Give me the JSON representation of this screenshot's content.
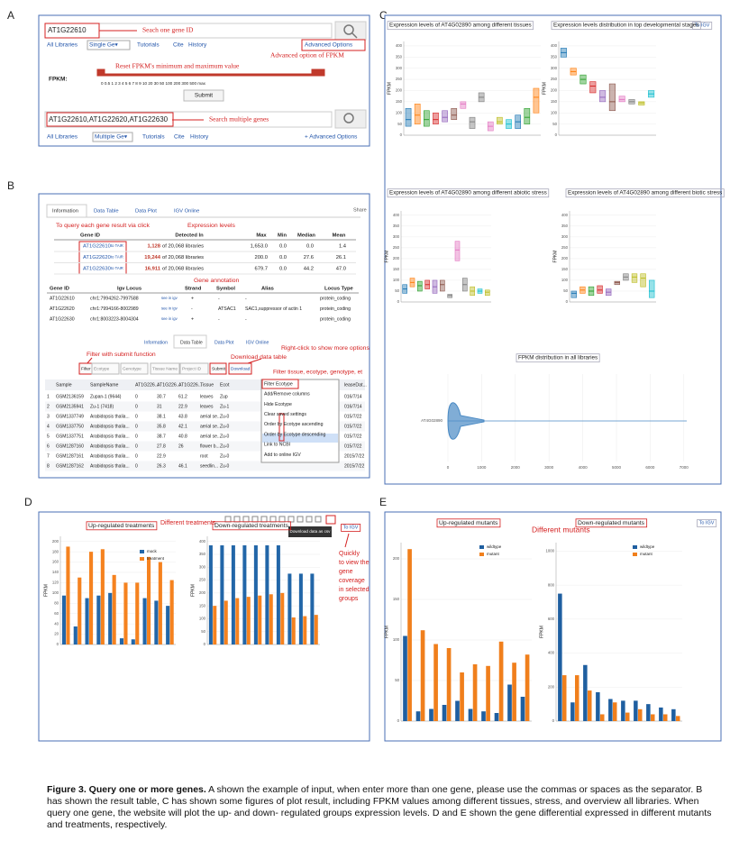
{
  "figure": {
    "panel_labels": [
      "A",
      "B",
      "C",
      "D",
      "E"
    ],
    "caption": {
      "lead": "Figure  3. Query one or more genes.",
      "text": " A shown the example of input, when enter more than one gene, please use the commas or spaces as the separator. B has shown the result table, C has shown some figures of plot result, including FPKM values among different tissues, stress, and overview all libraries. When query one gene, the website will plot the up- and down- regulated groups expression levels. D and E shown the gene differential expressed in different mutants and treatments, respectively."
    }
  },
  "panel_a": {
    "single_input": "AT1G22610",
    "single_note": "Seach one gene ID",
    "nav_single": [
      "All Libraries",
      "Single Ge▾",
      "Tutorials",
      "Cite",
      "History",
      "Advanced Options"
    ],
    "advanced_note": "Advanced option of FPKM",
    "fpkm_label": "FPKM:",
    "reset_note": "Reset FPKM's minimum and maximum value",
    "slider_scale": "0  0.5  1   2   3   4   5   6   7   8   9   10   20   30   50   100   200   300   500   max",
    "submit": "Submit",
    "multi_input": "AT1G22610,AT1G22620,AT1G22630",
    "multi_note": "Search multiple genes",
    "nav_multi": [
      "All Libraries",
      "Multiple Ge▾",
      "Tutorials",
      "Cite",
      "History",
      "+ Advanced Options"
    ]
  },
  "panel_b": {
    "tabs": [
      "Information",
      "Data Table",
      "Data Plot",
      "IGV Online"
    ],
    "share": "Share",
    "click_note": "To query each gene result via click",
    "expression_note": "Expression levels",
    "gene_table": {
      "header": [
        "Gene ID",
        "Detected In",
        "Max",
        "Min",
        "Median",
        "Mean"
      ],
      "rows": [
        [
          "AT1G22610",
          "to TAIR",
          "1,128",
          "of 20,068 libraries",
          "1,653.0",
          "0.0",
          "0.0",
          "1.4"
        ],
        [
          "AT1G22620",
          "to TAIR",
          "19,244",
          "of 20,068 libraries",
          "200.0",
          "0.0",
          "27.6",
          "26.1"
        ],
        [
          "AT1G22630",
          "to TAIR",
          "16,911",
          "of 20,068 libraries",
          "679.7",
          "0.0",
          "44.2",
          "47.0"
        ]
      ]
    },
    "annotation_note": "Gene annotation",
    "annotation_table": {
      "header": [
        "Gene ID",
        "Igv Locus",
        "Strand",
        "Symbol",
        "Alias",
        "Locus Type"
      ],
      "rows": [
        [
          "AT1G22610",
          "chr1:7994262-7997588",
          "see in igv",
          "+",
          "-",
          "-",
          "protein_coding"
        ],
        [
          "AT1G22620",
          "chr1:7994166-8002989",
          "see in igv",
          "-",
          "ATSAC1",
          "SAC1,suppressor of actin 1",
          "protein_coding"
        ],
        [
          "AT1G22630",
          "chr1:8003223-8004304",
          "see in igv",
          "+",
          "-",
          "-",
          "protein_coding"
        ]
      ]
    },
    "tabs_lower": [
      "Information",
      "Data Table",
      "Data Plot",
      "IGV Online"
    ],
    "filter_note": "Filter with submit function",
    "download_note": "Download data table",
    "rightclick_note": "Right-click to show more options",
    "filter_menu_note": "Filter tissue, ecotype, genotype, et",
    "filter_row": [
      "Filter",
      "Ecotype",
      "Genotype",
      "Tissue Name",
      "Project ID",
      "Submit",
      "Download"
    ],
    "sample_table": {
      "header": [
        "Sample",
        "SampleName",
        "AT1G226...",
        "AT1G226...",
        "AT1G226...",
        "Tissue",
        "Ecot",
        "leaseDat..."
      ],
      "rows": [
        [
          "1",
          "GSM2136159",
          "Zupan-1 (9644)",
          "0",
          "30.7",
          "61.2",
          "leaves",
          "Zup",
          "016/7/14"
        ],
        [
          "2",
          "GSM2135941",
          "Zu-1 (7418)",
          "0",
          "31",
          "22.9",
          "leaves",
          "Zu-1",
          "016/7/14"
        ],
        [
          "3",
          "GSM1337749",
          "Arabidopsis thalia...",
          "0",
          "38.1",
          "43.8",
          "aerial se...",
          "Zu-0",
          "015/7/22"
        ],
        [
          "4",
          "GSM1337750",
          "Arabidopsis thalia...",
          "0",
          "35.8",
          "42.1",
          "aerial se...",
          "Zu-0",
          "015/7/22"
        ],
        [
          "5",
          "GSM1337751",
          "Arabidopsis thalia...",
          "0",
          "38.7",
          "40.8",
          "aerial se...",
          "Zu-0",
          "015/7/22"
        ],
        [
          "6",
          "GSM1287160",
          "Arabidopsis thalia...",
          "0",
          "27.8",
          "26",
          "flower b...",
          "Zu-0",
          "015/7/22"
        ],
        [
          "7",
          "GSM1287161",
          "Arabidopsis thalia...",
          "0",
          "22.9",
          null,
          "root",
          "Zu-0",
          "2015/7/22"
        ],
        [
          "8",
          "GSM1287162",
          "Arabidopsis thalia...",
          "0",
          "26.3",
          "46.1",
          "seedlin...",
          "Zu-0",
          "2015/7/22"
        ]
      ]
    },
    "context_menu": [
      "Filter Ecotype",
      "Add/Remove columns",
      "Hide Ecotype",
      "Clear saved settings",
      "Order by Ecotype ascending",
      "Order by Ecotype descending",
      "Link to NCBI",
      "Add to online IGV"
    ]
  },
  "panel_c": {
    "to_igv": "To IGV"
  },
  "panel_d": {
    "different_note": "Different treatments",
    "download_tip": "Download data as csv",
    "to_igv": "To IGV",
    "quick_note": [
      "Quickly",
      "to view the",
      "gene",
      "coverage",
      "in selected",
      "groups"
    ]
  },
  "panel_e": {
    "different_note": "Different mutants",
    "to_igv": "To IGV"
  },
  "chart_data": [
    {
      "type": "box",
      "title": "Expression levels of AT4G02890 among different tissues",
      "y_label": "FPKM",
      "ylim": [
        0,
        420
      ],
      "yticks": [
        0,
        50,
        100,
        150,
        200,
        250,
        300,
        350,
        400
      ],
      "q1": [
        40,
        50,
        40,
        50,
        60,
        70,
        120,
        30,
        150,
        20,
        50,
        30,
        30,
        50,
        100
      ],
      "median": [
        70,
        90,
        70,
        70,
        80,
        90,
        140,
        60,
        170,
        40,
        60,
        50,
        60,
        80,
        170
      ],
      "q3": [
        120,
        140,
        110,
        100,
        110,
        120,
        150,
        80,
        190,
        60,
        80,
        70,
        90,
        120,
        210
      ],
      "colors": [
        "#1f77b4",
        "#ff7f0e",
        "#2ca02c",
        "#d62728",
        "#9467bd",
        "#8c564b",
        "#e377c2",
        "#7f7f7f",
        "#7f7f7f",
        "#e377c2",
        "#bcbd22",
        "#17becf",
        "#1f77b4",
        "#2ca02c",
        "#ff7f0e"
      ]
    },
    {
      "type": "box",
      "title": "Expression levels distribution in top developmental stages",
      "y_label": "FPKM",
      "ylim": [
        0,
        420
      ],
      "yticks": [
        0,
        50,
        100,
        150,
        200,
        250,
        300,
        350,
        400
      ],
      "q1": [
        350,
        270,
        230,
        190,
        150,
        110,
        150,
        140,
        135,
        170
      ],
      "median": [
        370,
        285,
        250,
        220,
        170,
        150,
        160,
        150,
        145,
        185
      ],
      "q3": [
        390,
        300,
        270,
        240,
        200,
        230,
        175,
        160,
        150,
        200
      ],
      "colors": [
        "#1f77b4",
        "#ff7f0e",
        "#2ca02c",
        "#d62728",
        "#9467bd",
        "#8c564b",
        "#e377c2",
        "#7f7f7f",
        "#bcbd22",
        "#17becf"
      ]
    },
    {
      "type": "box",
      "title": "Expression levels of AT4G02890 among different abiotic stress",
      "y_label": "FPKM",
      "ylim": [
        0,
        420
      ],
      "yticks": [
        0,
        50,
        100,
        150,
        200,
        250,
        300,
        350,
        400
      ],
      "q1": [
        40,
        70,
        50,
        60,
        40,
        50,
        20,
        190,
        50,
        30,
        40,
        30
      ],
      "median": [
        60,
        90,
        75,
        80,
        70,
        80,
        30,
        240,
        80,
        50,
        50,
        45
      ],
      "q3": [
        80,
        110,
        95,
        100,
        100,
        100,
        35,
        280,
        110,
        70,
        60,
        55
      ],
      "colors": [
        "#1f77b4",
        "#ff7f0e",
        "#2ca02c",
        "#d62728",
        "#9467bd",
        "#8c564b",
        "#7f7f7f",
        "#e377c2",
        "#7f7f7f",
        "#bcbd22",
        "#17becf",
        "#bcbd22"
      ]
    },
    {
      "type": "box",
      "title": "Expression levels of AT4G02890 among different biotic stress",
      "y_label": "FPKM",
      "ylim": [
        0,
        420
      ],
      "yticks": [
        0,
        50,
        100,
        150,
        200,
        250,
        300,
        350,
        400
      ],
      "q1": [
        20,
        40,
        30,
        40,
        30,
        80,
        100,
        90,
        70,
        20
      ],
      "median": [
        40,
        55,
        50,
        55,
        45,
        90,
        115,
        115,
        110,
        50
      ],
      "q3": [
        50,
        70,
        70,
        75,
        60,
        95,
        130,
        130,
        130,
        100
      ],
      "colors": [
        "#1f77b4",
        "#ff7f0e",
        "#2ca02c",
        "#d62728",
        "#9467bd",
        "#8c564b",
        "#7f7f7f",
        "#bcbd22",
        "#bcbd22",
        "#17becf"
      ]
    },
    {
      "type": "violin",
      "title": "FPKM distribution in all libraries",
      "categories": [
        "AT4G02890"
      ],
      "xlim": [
        0,
        7300
      ],
      "xticks": [
        0,
        1000,
        2000,
        3000,
        4000,
        5000,
        6000,
        7000
      ],
      "color": "#4a8ac4"
    },
    {
      "type": "grouped_bar",
      "title": "Up-regulated treatments",
      "y_label": "FPKM",
      "legend": true,
      "categories": [
        null,
        null,
        null,
        null,
        null,
        null,
        null,
        null,
        null,
        null
      ],
      "ylim": [
        0,
        210
      ],
      "yticks": [
        0,
        20,
        40,
        60,
        80,
        100,
        120,
        140,
        160,
        180,
        200
      ],
      "series": [
        {
          "name": "mock",
          "color": "#2266a8",
          "values": [
            95,
            35,
            90,
            95,
            100,
            12,
            10,
            90,
            85,
            75
          ]
        },
        {
          "name": "treatment",
          "color": "#f5821f",
          "values": [
            190,
            130,
            180,
            185,
            135,
            120,
            120,
            170,
            160,
            125
          ]
        }
      ]
    },
    {
      "type": "grouped_bar",
      "title": "Down-regulated treatments",
      "y_label": "FPKM",
      "legend": false,
      "categories": [
        null,
        null,
        null,
        null,
        null,
        null,
        null,
        null,
        null,
        null
      ],
      "ylim": [
        0,
        420
      ],
      "yticks": [
        0,
        50,
        100,
        150,
        200,
        250,
        300,
        350,
        400
      ],
      "series": [
        {
          "name": "mock",
          "color": "#2266a8",
          "values": [
            385,
            385,
            385,
            385,
            385,
            385,
            385,
            275,
            275,
            275
          ]
        },
        {
          "name": "treatment",
          "color": "#f5821f",
          "values": [
            150,
            170,
            180,
            185,
            190,
            195,
            200,
            105,
            110,
            115
          ]
        }
      ]
    },
    {
      "type": "grouped_bar",
      "title": "Up-regulated mutants",
      "y_label": "FPKM",
      "legend": true,
      "categories": [
        null,
        null,
        null,
        null,
        null,
        null,
        null,
        null,
        null,
        null
      ],
      "ylim": [
        0,
        220
      ],
      "yticks": [
        0,
        50,
        100,
        150,
        200
      ],
      "series": [
        {
          "name": "wildtype",
          "color": "#1f5fa0",
          "values": [
            105,
            12,
            15,
            20,
            25,
            15,
            12,
            10,
            45,
            30
          ]
        },
        {
          "name": "mutant",
          "color": "#f07f1c",
          "values": [
            212,
            112,
            95,
            90,
            60,
            70,
            68,
            98,
            72,
            82
          ]
        }
      ]
    },
    {
      "type": "grouped_bar",
      "title": "Down-regulated mutants",
      "y_label": "FPKM",
      "legend": true,
      "categories": [
        null,
        null,
        null,
        null,
        null,
        null,
        null,
        null,
        null,
        null
      ],
      "ylim": [
        0,
        1050
      ],
      "yticks": [
        0,
        200,
        400,
        600,
        800,
        1000
      ],
      "series": [
        {
          "name": "wildtype",
          "color": "#1f5fa0",
          "values": [
            750,
            110,
            330,
            170,
            130,
            120,
            120,
            100,
            80,
            70
          ]
        },
        {
          "name": "mutant",
          "color": "#f07f1c",
          "values": [
            270,
            270,
            180,
            40,
            110,
            50,
            70,
            40,
            40,
            30
          ]
        }
      ]
    }
  ]
}
